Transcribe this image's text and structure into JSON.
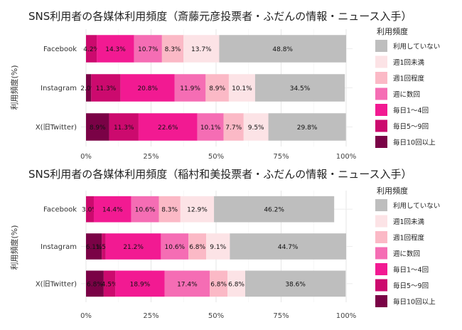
{
  "legend": {
    "title": "利用頻度",
    "items": [
      {
        "label": "利用していない",
        "color": "#BEBEBE"
      },
      {
        "label": "週1回未満",
        "color": "#FCE3E6"
      },
      {
        "label": "週1回程度",
        "color": "#FBB9C6"
      },
      {
        "label": "週に数回",
        "color": "#F56DB4"
      },
      {
        "label": "毎日1〜4回",
        "color": "#F21A92"
      },
      {
        "label": "毎日5〜9回",
        "color": "#CC0A6E"
      },
      {
        "label": "毎日10回以上",
        "color": "#7A0246"
      }
    ]
  },
  "chart_data": [
    {
      "type": "bar",
      "orientation": "horizontal",
      "stacked": true,
      "title": "SNS利用者の各媒体利用頻度（斎藤元彦投票者・ふだんの情報・ニュース入手）",
      "ylabel": "利用頻度(%)",
      "categories": [
        "Facebook",
        "Instagram",
        "X(旧Twitter)"
      ],
      "xlim": [
        0,
        100
      ],
      "xticks": [
        "0%",
        "25%",
        "50%",
        "75%",
        "100%"
      ],
      "series": [
        {
          "name": "毎日10回以上",
          "values": [
            0.0,
            2.0,
            8.9
          ],
          "labels": [
            "",
            "2.0%",
            "8.9%"
          ]
        },
        {
          "name": "毎日5〜9回",
          "values": [
            4.2,
            11.3,
            11.3
          ],
          "labels": [
            "4.2%",
            "11.3%",
            "11.3%"
          ]
        },
        {
          "name": "毎日1〜4回",
          "values": [
            14.3,
            20.8,
            22.6
          ],
          "labels": [
            "14.3%",
            "20.8%",
            "22.6%"
          ]
        },
        {
          "name": "週に数回",
          "values": [
            10.7,
            11.9,
            10.1
          ],
          "labels": [
            "10.7%",
            "11.9%",
            "10.1%"
          ]
        },
        {
          "name": "週1回程度",
          "values": [
            8.3,
            8.9,
            7.7
          ],
          "labels": [
            "8.3%",
            "8.9%",
            "7.7%"
          ]
        },
        {
          "name": "週1回未満",
          "values": [
            13.7,
            10.1,
            9.5
          ],
          "labels": [
            "13.7%",
            "10.1%",
            "9.5%"
          ]
        },
        {
          "name": "利用していない",
          "values": [
            48.8,
            34.5,
            29.8
          ],
          "labels": [
            "48.8%",
            "34.5%",
            "29.8%"
          ]
        }
      ]
    },
    {
      "type": "bar",
      "orientation": "horizontal",
      "stacked": true,
      "title": "SNS利用者の各媒体利用頻度（稲村和美投票者・ふだんの情報・ニュース入手）",
      "ylabel": "利用頻度(%)",
      "categories": [
        "Facebook",
        "Instagram",
        "X(旧Twitter)"
      ],
      "xlim": [
        0,
        100
      ],
      "xticks": [
        "0%",
        "25%",
        "50%",
        "75%",
        "100%"
      ],
      "series": [
        {
          "name": "毎日10回以上",
          "values": [
            0.0,
            6.1,
            6.8
          ],
          "labels": [
            "",
            "6.1%",
            "6.8%"
          ]
        },
        {
          "name": "毎日5〜9回",
          "values": [
            3.0,
            1.5,
            4.5
          ],
          "labels": [
            "3.0%",
            "1.5%",
            "4.5%"
          ]
        },
        {
          "name": "毎日1〜4回",
          "values": [
            14.4,
            21.2,
            18.9
          ],
          "labels": [
            "14.4%",
            "21.2%",
            "18.9%"
          ]
        },
        {
          "name": "週に数回",
          "values": [
            10.6,
            10.6,
            17.4
          ],
          "labels": [
            "10.6%",
            "10.6%",
            "17.4%"
          ]
        },
        {
          "name": "週1回程度",
          "values": [
            8.3,
            6.8,
            6.8
          ],
          "labels": [
            "8.3%",
            "6.8%",
            "6.8%"
          ]
        },
        {
          "name": "週1回未満",
          "values": [
            12.9,
            9.1,
            6.8
          ],
          "labels": [
            "12.9%",
            "9.1%",
            "6.8%"
          ]
        },
        {
          "name": "利用していない",
          "values": [
            46.2,
            44.7,
            38.6
          ],
          "labels": [
            "46.2%",
            "44.7%",
            "38.6%"
          ]
        }
      ]
    }
  ]
}
